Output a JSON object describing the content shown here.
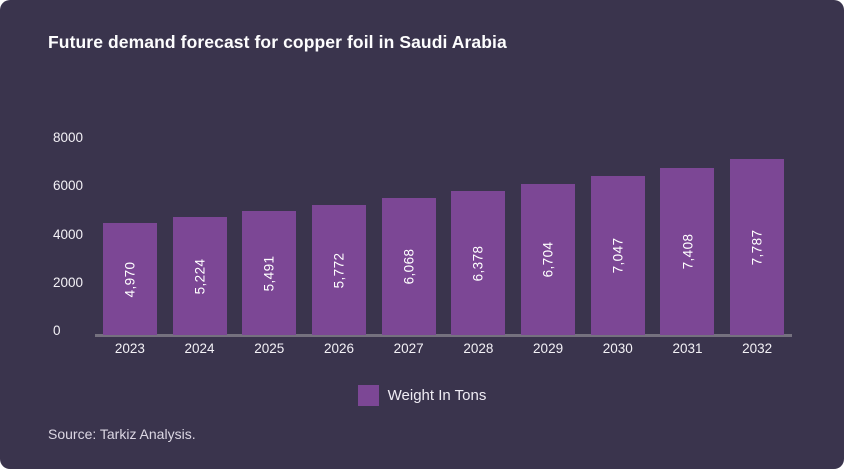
{
  "page": {
    "title": "Future demand forecast for copper foil in Saudi Arabia",
    "source": "Source: Tarkiz Analysis.",
    "background_color": "#3a344d"
  },
  "legend": {
    "label": "Weight In Tons",
    "swatch_color": "#7c4795"
  },
  "chart_data": {
    "type": "bar",
    "title": "Future demand forecast for copper foil in Saudi Arabia",
    "categories": [
      "2023",
      "2024",
      "2025",
      "2026",
      "2027",
      "2028",
      "2029",
      "2030",
      "2031",
      "2032"
    ],
    "series": [
      {
        "name": "Weight In Tons",
        "values": [
          4970,
          5224,
          5491,
          5772,
          6068,
          6378,
          6704,
          7047,
          7408,
          7787
        ]
      }
    ],
    "value_labels": [
      "4,970",
      "5,224",
      "5,491",
      "5,772",
      "6,068",
      "6,378",
      "6,704",
      "7,047",
      "7,408",
      "7,787"
    ],
    "xlabel": "",
    "ylabel": "",
    "ytick_labels": [
      "0",
      "2000",
      "4000",
      "6000",
      "8000"
    ],
    "ytick_values": [
      0,
      2000,
      4000,
      6000,
      8000
    ],
    "ylim": [
      0,
      9300
    ],
    "bar_color": "#7c4795",
    "value_label_color": "#ffffff",
    "grid": false,
    "legend_position": "bottom"
  }
}
